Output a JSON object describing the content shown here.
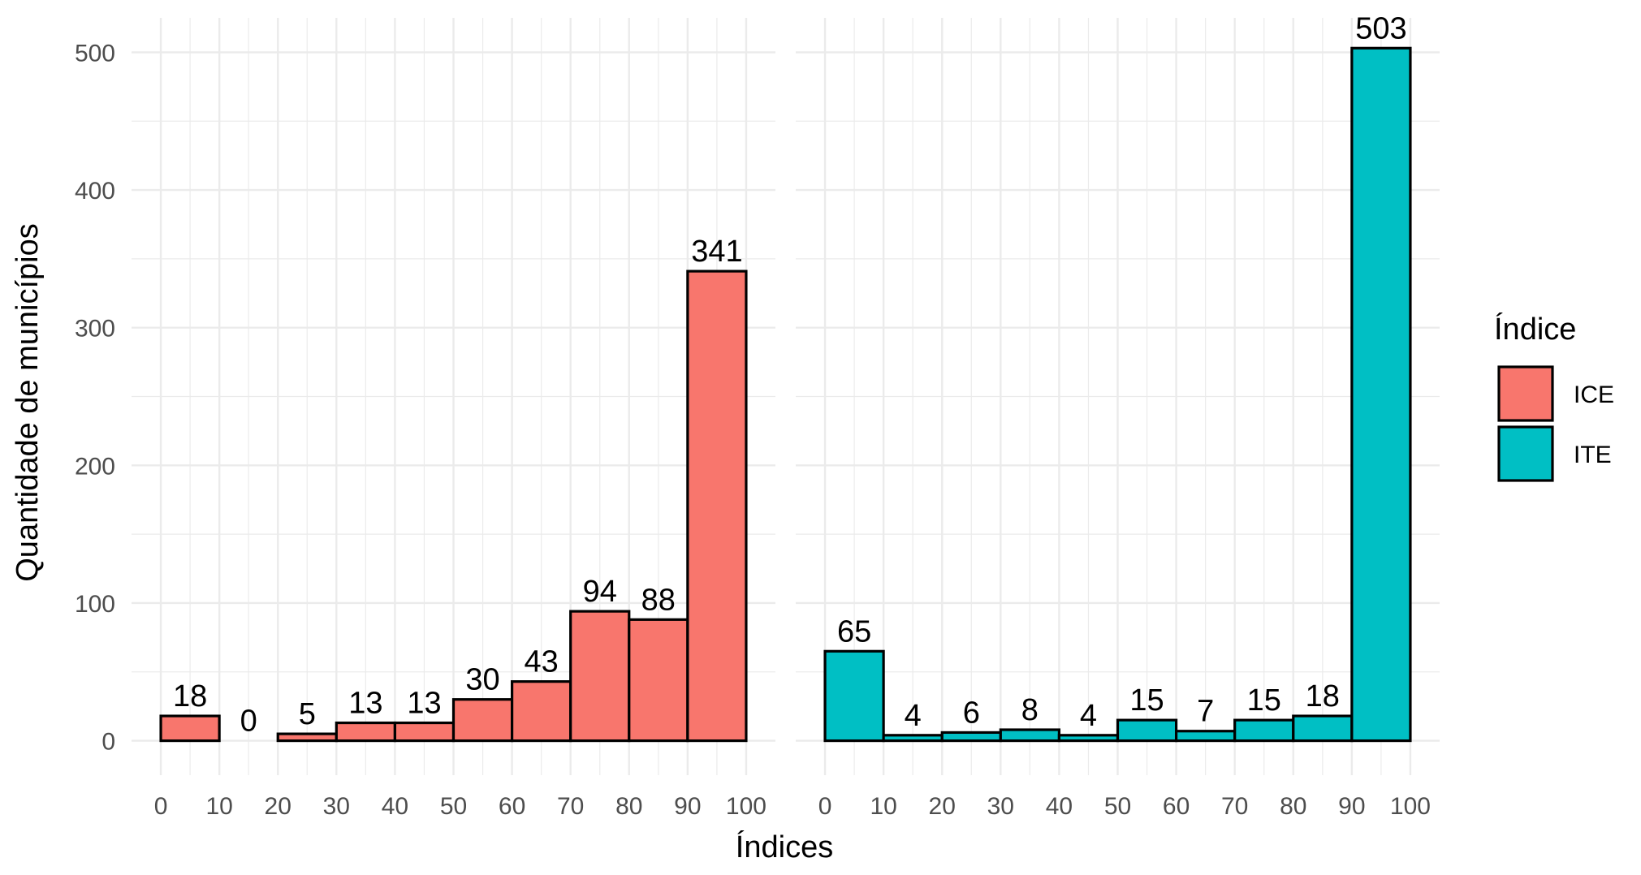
{
  "chart_data": {
    "type": "bar",
    "ylabel": "Quantidade de municípios",
    "xlabel": "Índices",
    "ylim": [
      -25,
      525
    ],
    "xlim": [
      -5,
      105
    ],
    "yticks": [
      0,
      100,
      200,
      300,
      400,
      500
    ],
    "xticks": [
      0,
      10,
      20,
      30,
      40,
      50,
      60,
      70,
      80,
      90,
      100
    ],
    "bin_width": 10,
    "grid": true,
    "legend": {
      "title": "Índice",
      "position": "right",
      "entries": [
        {
          "label": "ICE",
          "color": "#F8766D"
        },
        {
          "label": "ITE",
          "color": "#00BFC4"
        }
      ]
    },
    "panels": [
      {
        "series": "ICE",
        "color": "#F8766D",
        "bin_starts": [
          0,
          10,
          20,
          30,
          40,
          50,
          60,
          70,
          80,
          90
        ],
        "values": [
          18,
          0,
          5,
          13,
          13,
          30,
          43,
          94,
          88,
          341
        ]
      },
      {
        "series": "ITE",
        "color": "#00BFC4",
        "bin_starts": [
          0,
          10,
          20,
          30,
          40,
          50,
          60,
          70,
          80,
          90
        ],
        "values": [
          65,
          4,
          6,
          8,
          4,
          15,
          7,
          15,
          18,
          503
        ]
      }
    ]
  }
}
